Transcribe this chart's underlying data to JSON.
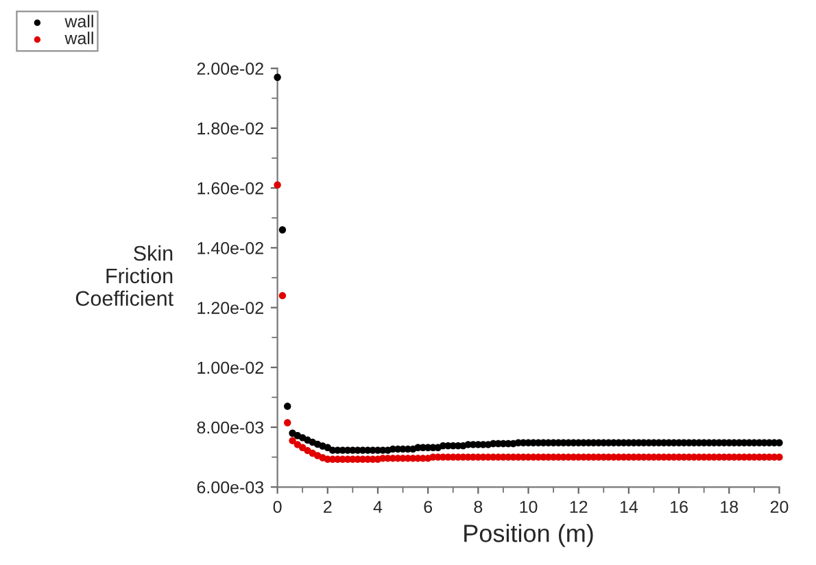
{
  "chart_data": {
    "type": "scatter",
    "xlabel": "Position (m)",
    "ylabel": "Skin\nFriction\nCoefficient",
    "x": [
      0,
      0.2,
      0.4,
      0.6,
      0.8,
      1,
      1.2,
      1.4,
      1.6,
      1.8,
      2,
      2.2,
      2.4,
      2.6,
      2.8,
      3,
      3.2,
      3.4,
      3.6,
      3.8,
      4,
      4.2,
      4.4,
      4.6,
      4.8,
      5,
      5.2,
      5.4,
      5.6,
      5.8,
      6,
      6.2,
      6.4,
      6.6,
      6.8,
      7,
      7.2,
      7.4,
      7.6,
      7.8,
      8,
      8.2,
      8.4,
      8.6,
      8.8,
      9,
      9.2,
      9.4,
      9.6,
      9.8,
      10,
      10.2,
      10.4,
      10.6,
      10.8,
      11,
      11.2,
      11.4,
      11.6,
      11.8,
      12,
      12.2,
      12.4,
      12.6,
      12.8,
      13,
      13.2,
      13.4,
      13.6,
      13.8,
      14,
      14.2,
      14.4,
      14.6,
      14.8,
      15,
      15.2,
      15.4,
      15.6,
      15.8,
      16,
      16.2,
      16.4,
      16.6,
      16.8,
      17,
      17.2,
      17.4,
      17.6,
      17.8,
      18,
      18.2,
      18.4,
      18.6,
      18.8,
      19,
      19.2,
      19.4,
      19.6,
      19.8,
      20
    ],
    "series": [
      {
        "name": "wall",
        "color": "#000000",
        "values": [
          0.0197,
          0.0146,
          0.0087,
          0.0078,
          0.00772,
          0.00765,
          0.00757,
          0.0075,
          0.00743,
          0.00737,
          0.00732,
          0.00723,
          0.00723,
          0.00723,
          0.00723,
          0.00723,
          0.00723,
          0.00723,
          0.00723,
          0.00723,
          0.00723,
          0.00723,
          0.00723,
          0.00727,
          0.00727,
          0.00727,
          0.00727,
          0.00727,
          0.00732,
          0.00732,
          0.00732,
          0.00732,
          0.00732,
          0.00738,
          0.00738,
          0.00738,
          0.00738,
          0.00738,
          0.00742,
          0.00742,
          0.00742,
          0.00742,
          0.00742,
          0.00745,
          0.00745,
          0.00745,
          0.00745,
          0.00745,
          0.00748,
          0.00748,
          0.00748,
          0.00748,
          0.00748,
          0.00748,
          0.00748,
          0.00748,
          0.00748,
          0.00748,
          0.00748,
          0.00748,
          0.00748,
          0.00748,
          0.00748,
          0.00748,
          0.00748,
          0.00748,
          0.00748,
          0.00748,
          0.00748,
          0.00748,
          0.00748,
          0.00748,
          0.00748,
          0.00748,
          0.00748,
          0.00748,
          0.00748,
          0.00748,
          0.00748,
          0.00748,
          0.00748,
          0.00748,
          0.00748,
          0.00748,
          0.00748,
          0.00748,
          0.00748,
          0.00748,
          0.00748,
          0.00748,
          0.00748,
          0.00748,
          0.00748,
          0.00748,
          0.00748,
          0.00748,
          0.00748,
          0.00748,
          0.00748,
          0.00748,
          0.00748
        ]
      },
      {
        "name": "wall",
        "color": "#e00000",
        "values": [
          0.0161,
          0.0124,
          0.00815,
          0.00755,
          0.00742,
          0.00732,
          0.00722,
          0.00713,
          0.00705,
          0.00698,
          0.00693,
          0.00693,
          0.00693,
          0.00693,
          0.00693,
          0.00693,
          0.00693,
          0.00693,
          0.00693,
          0.00693,
          0.00693,
          0.00696,
          0.00696,
          0.00696,
          0.00696,
          0.00696,
          0.00696,
          0.00696,
          0.00696,
          0.00696,
          0.00696,
          0.007,
          0.007,
          0.007,
          0.007,
          0.007,
          0.007,
          0.007,
          0.007,
          0.007,
          0.007,
          0.007,
          0.007,
          0.007,
          0.007,
          0.007,
          0.007,
          0.007,
          0.007,
          0.007,
          0.007,
          0.007,
          0.007,
          0.007,
          0.007,
          0.007,
          0.007,
          0.007,
          0.007,
          0.007,
          0.007,
          0.007,
          0.007,
          0.007,
          0.007,
          0.007,
          0.007,
          0.007,
          0.007,
          0.007,
          0.007,
          0.007,
          0.007,
          0.007,
          0.007,
          0.007,
          0.007,
          0.007,
          0.007,
          0.007,
          0.007,
          0.007,
          0.007,
          0.007,
          0.007,
          0.007,
          0.007,
          0.007,
          0.007,
          0.007,
          0.007,
          0.007,
          0.007,
          0.007,
          0.007,
          0.007,
          0.007,
          0.007,
          0.007,
          0.007,
          0.007
        ]
      }
    ],
    "xlim": [
      0,
      20
    ],
    "xticks": [
      0,
      2,
      4,
      6,
      8,
      10,
      12,
      14,
      16,
      18,
      20
    ],
    "ylim": [
      0.006,
      0.02
    ],
    "yticks": [
      {
        "value": 0.006,
        "label": "6.00e-03"
      },
      {
        "value": 0.008,
        "label": "8.00e-03"
      },
      {
        "value": 0.01,
        "label": "1.00e-02"
      },
      {
        "value": 0.012,
        "label": "1.20e-02"
      },
      {
        "value": 0.014,
        "label": "1.40e-02"
      },
      {
        "value": 0.016,
        "label": "1.60e-02"
      },
      {
        "value": 0.018,
        "label": "1.80e-02"
      },
      {
        "value": 0.02,
        "label": "2.00e-02"
      }
    ],
    "marker": "circle",
    "grid": false,
    "legend": "top left"
  }
}
